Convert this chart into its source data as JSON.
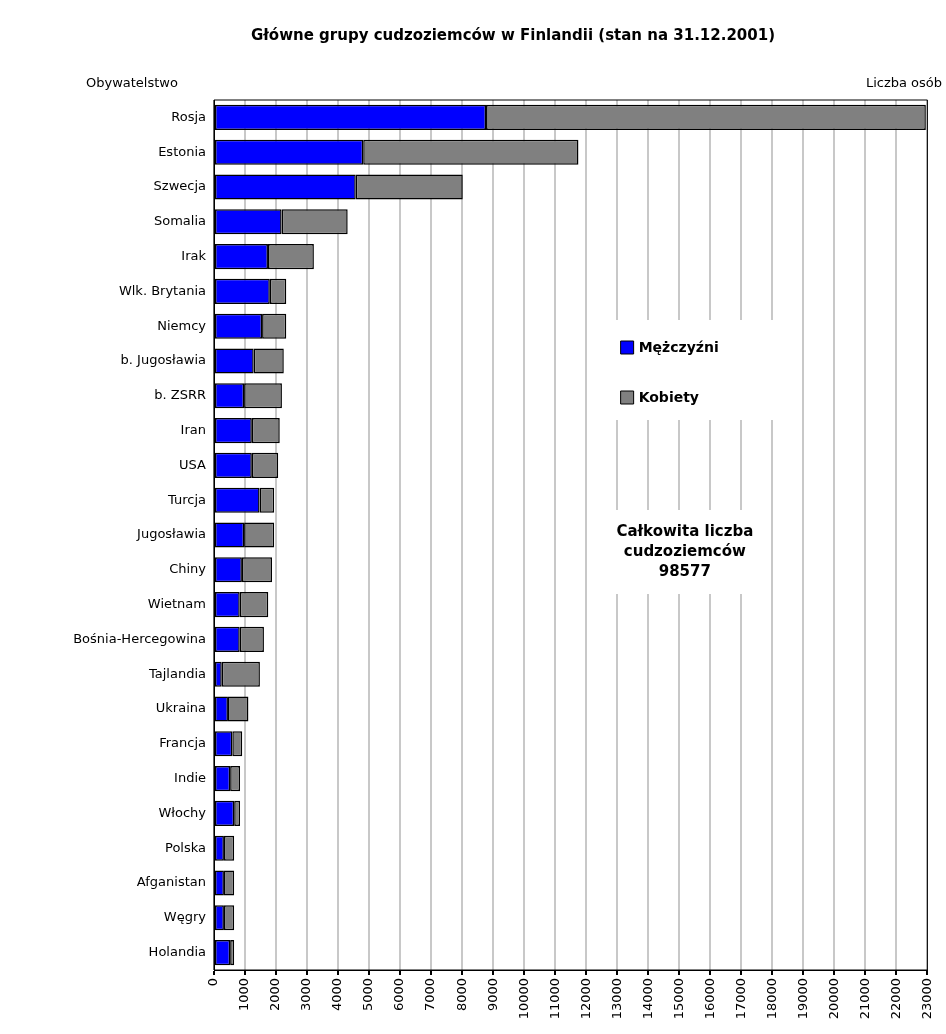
{
  "chart_data": {
    "type": "bar",
    "orientation": "horizontal",
    "stacked": true,
    "title": "Główne grupy cudzoziemców w Finlandii (stan na 31.12.2001)",
    "xlabel": "Liczba osób",
    "ylabel": "Obywatelstwo",
    "categories": [
      "Rosja",
      "Estonia",
      "Szwecja",
      "Somalia",
      "Irak",
      "Wlk. Brytania",
      "Niemcy",
      "b. Jugosławia",
      "b. ZSRR",
      "Iran",
      "USA",
      "Turcja",
      "Jugosławia",
      "Chiny",
      "Wietnam",
      "Bośnia-Hercegowina",
      "Tajlandia",
      "Ukraina",
      "Francja",
      "Indie",
      "Włochy",
      "Polska",
      "Afganistan",
      "Węgry",
      "Holandia"
    ],
    "series": [
      {
        "name": "Mężczyźni",
        "color": "#0000ff",
        "values": [
          8770,
          4810,
          4570,
          2180,
          1740,
          1800,
          1550,
          1280,
          970,
          1220,
          1220,
          1470,
          970,
          900,
          830,
          830,
          250,
          450,
          590,
          520,
          650,
          320,
          320,
          320,
          520
        ]
      },
      {
        "name": "Kobiety",
        "color": "#808080",
        "values": [
          14180,
          6940,
          3450,
          2130,
          1480,
          530,
          780,
          970,
          1220,
          900,
          850,
          470,
          970,
          970,
          920,
          780,
          1230,
          660,
          320,
          320,
          190,
          330,
          330,
          330,
          130
        ]
      }
    ],
    "xlim": [
      0,
      23000
    ],
    "xticks": [
      0,
      1000,
      2000,
      3000,
      4000,
      5000,
      6000,
      7000,
      8000,
      9000,
      10000,
      11000,
      12000,
      13000,
      14000,
      15000,
      16000,
      17000,
      18000,
      19000,
      20000,
      21000,
      22000,
      23000
    ],
    "grid": "x",
    "legend": "right",
    "annotations": [
      "Całkowita liczba\ncudzoziemców\n98577"
    ]
  }
}
